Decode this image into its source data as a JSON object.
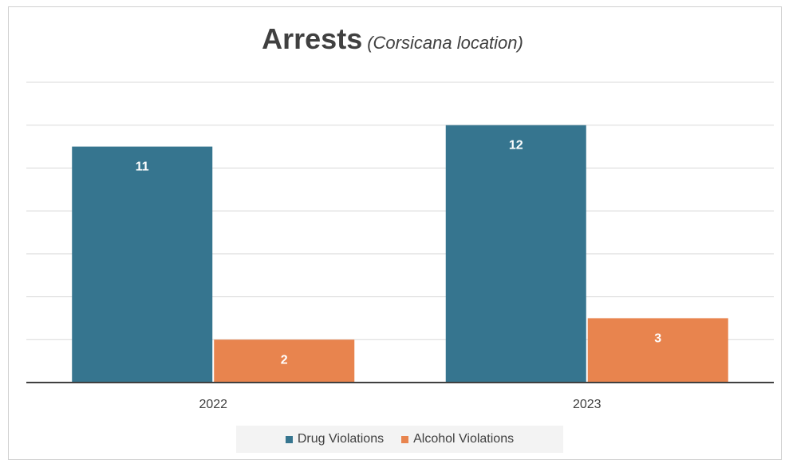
{
  "chart_data": {
    "type": "bar",
    "title": "Arrests",
    "subtitle": "(Corsicana location)",
    "categories": [
      "2022",
      "2023"
    ],
    "series": [
      {
        "name": "Drug Violations",
        "values": [
          11,
          12
        ],
        "color": "#36758F"
      },
      {
        "name": "Alcohol Violations",
        "values": [
          2,
          3
        ],
        "color": "#E8844E"
      }
    ],
    "xlabel": "",
    "ylabel": "",
    "ylim": [
      0,
      14
    ],
    "grid": true,
    "legend_position": "bottom",
    "data_labels": true
  }
}
